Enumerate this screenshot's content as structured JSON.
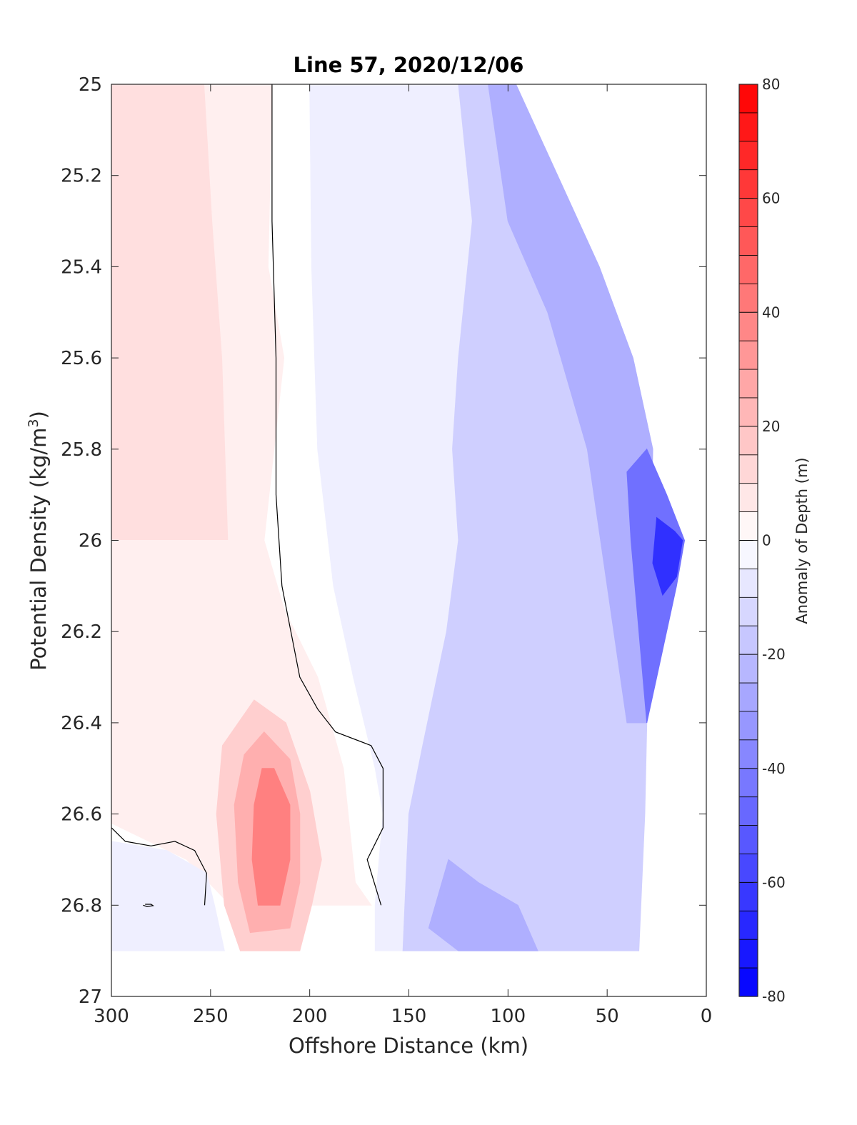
{
  "chart_data": {
    "type": "contour",
    "title": "Line 57, 2020/12/06",
    "xlabel": "Offshore Distance (km)",
    "ylabel": "Potential Density (kg/m",
    "ylabel_superscript": "3",
    "ylabel_suffix": ")",
    "xlim": [
      300,
      0
    ],
    "ylim": [
      25,
      27
    ],
    "x_reversed": true,
    "y_reversed": true,
    "xticks": [
      300,
      250,
      200,
      150,
      100,
      50,
      0
    ],
    "xtick_labels": [
      "300",
      "250",
      "200",
      "150",
      "100",
      "50",
      "0"
    ],
    "yticks": [
      25,
      25.2,
      25.4,
      25.6,
      25.8,
      26,
      26.2,
      26.4,
      26.6,
      26.8,
      27
    ],
    "ytick_labels": [
      "25",
      "25.2",
      "25.4",
      "25.6",
      "25.8",
      "26",
      "26.2",
      "26.4",
      "26.6",
      "26.8",
      "27"
    ],
    "grid": false,
    "colorbar": {
      "label": "Anomaly of Depth (m)",
      "range": [
        -80,
        80
      ],
      "level_step": 5,
      "ticks": [
        80,
        60,
        40,
        20,
        0,
        -20,
        -40,
        -60,
        -80
      ],
      "tick_labels": [
        "80",
        "60",
        "40",
        "20",
        "0",
        "-20",
        "-40",
        "-60",
        "-80"
      ],
      "colormap": "blue-white-red",
      "colors": {
        "negative_end": "#0000ff",
        "zero": "#ffffff",
        "positive_end": "#ff0000"
      }
    },
    "zero_contour_color": "#000000",
    "regions": [
      {
        "name": "offshore weak positive band",
        "level": 10,
        "points": [
          [
            300,
            25
          ],
          [
            253,
            25
          ],
          [
            249,
            25.3
          ],
          [
            244,
            25.6
          ],
          [
            241,
            26.0
          ],
          [
            234,
            26.2
          ],
          [
            228,
            26.4
          ],
          [
            238,
            26.6
          ],
          [
            300,
            26.62
          ]
        ]
      },
      {
        "name": "inner positive band",
        "level": 5,
        "points": [
          [
            253,
            25
          ],
          [
            219,
            25
          ],
          [
            221,
            25.4
          ],
          [
            213,
            25.6
          ],
          [
            223,
            26.0
          ],
          [
            213,
            26.15
          ],
          [
            196,
            26.3
          ],
          [
            183,
            26.5
          ],
          [
            177,
            26.75
          ],
          [
            169,
            26.8
          ],
          [
            200,
            26.8
          ],
          [
            240,
            26.8
          ],
          [
            262,
            26.7
          ],
          [
            300,
            26.62
          ],
          [
            300,
            26.0
          ],
          [
            241,
            26.0
          ],
          [
            244,
            25.6
          ],
          [
            249,
            25.3
          ]
        ]
      },
      {
        "name": "subsurface positive core outer",
        "level": 15,
        "points": [
          [
            228,
            26.35
          ],
          [
            212,
            26.4
          ],
          [
            200,
            26.55
          ],
          [
            194,
            26.7
          ],
          [
            199,
            26.8
          ],
          [
            205,
            26.9
          ],
          [
            235,
            26.9
          ],
          [
            243,
            26.8
          ],
          [
            247,
            26.6
          ],
          [
            244,
            26.45
          ]
        ]
      },
      {
        "name": "subsurface positive core middle",
        "level": 25,
        "points": [
          [
            223,
            26.42
          ],
          [
            210,
            26.48
          ],
          [
            205,
            26.6
          ],
          [
            205,
            26.75
          ],
          [
            210,
            26.85
          ],
          [
            230,
            26.86
          ],
          [
            236,
            26.75
          ],
          [
            238,
            26.58
          ],
          [
            233,
            26.47
          ]
        ]
      },
      {
        "name": "subsurface positive core inner",
        "level": 40,
        "points": [
          [
            218,
            26.5
          ],
          [
            210,
            26.58
          ],
          [
            210,
            26.7
          ],
          [
            215,
            26.8
          ],
          [
            226,
            26.8
          ],
          [
            229,
            26.7
          ],
          [
            228,
            26.58
          ],
          [
            224,
            26.5
          ]
        ]
      },
      {
        "name": "deep offshore weak negative",
        "level": -5,
        "points": [
          [
            300,
            26.66
          ],
          [
            272,
            26.68
          ],
          [
            252,
            26.73
          ],
          [
            248,
            26.8
          ],
          [
            243,
            26.9
          ],
          [
            300,
            26.9
          ]
        ]
      },
      {
        "name": "near-zero negative band",
        "level": -5,
        "points": [
          [
            200,
            25
          ],
          [
            125,
            25
          ],
          [
            118,
            25.3
          ],
          [
            125,
            25.6
          ],
          [
            128,
            25.8
          ],
          [
            125,
            26.0
          ],
          [
            131,
            26.2
          ],
          [
            143,
            26.45
          ],
          [
            150,
            26.6
          ],
          [
            152,
            26.8
          ],
          [
            153,
            26.9
          ],
          [
            167,
            26.9
          ],
          [
            167,
            26.8
          ],
          [
            163,
            26.6
          ],
          [
            167,
            26.5
          ],
          [
            178,
            26.3
          ],
          [
            188,
            26.1
          ],
          [
            196,
            25.8
          ],
          [
            199,
            25.4
          ]
        ]
      },
      {
        "name": "moderate negative band",
        "level": -15,
        "points": [
          [
            125,
            25
          ],
          [
            96,
            25
          ],
          [
            75,
            25.2
          ],
          [
            54,
            25.4
          ],
          [
            37,
            25.6
          ],
          [
            27,
            25.8
          ],
          [
            28,
            26.0
          ],
          [
            31,
            26.2
          ],
          [
            30,
            26.4
          ],
          [
            31,
            26.6
          ],
          [
            34,
            26.9
          ],
          [
            153,
            26.9
          ],
          [
            152,
            26.8
          ],
          [
            150,
            26.6
          ],
          [
            143,
            26.45
          ],
          [
            131,
            26.2
          ],
          [
            125,
            26.0
          ],
          [
            128,
            25.8
          ],
          [
            125,
            25.6
          ],
          [
            118,
            25.3
          ]
        ]
      },
      {
        "name": "stronger negative band",
        "level": -25,
        "points": [
          [
            110,
            25
          ],
          [
            96,
            25
          ],
          [
            75,
            25.2
          ],
          [
            54,
            25.4
          ],
          [
            37,
            25.6
          ],
          [
            27,
            25.8
          ],
          [
            28,
            26.0
          ],
          [
            31,
            26.2
          ],
          [
            30,
            26.4
          ],
          [
            40,
            26.4
          ],
          [
            50,
            26.1
          ],
          [
            60,
            25.8
          ],
          [
            80,
            25.5
          ],
          [
            100,
            25.3
          ]
        ]
      },
      {
        "name": "deep negative patch",
        "level": -25,
        "points": [
          [
            130,
            26.7
          ],
          [
            115,
            26.75
          ],
          [
            95,
            26.8
          ],
          [
            85,
            26.9
          ],
          [
            125,
            26.9
          ],
          [
            140,
            26.85
          ]
        ]
      },
      {
        "name": "coastal strong negative",
        "level": -45,
        "points": [
          [
            40,
            25.85
          ],
          [
            30,
            25.8
          ],
          [
            20,
            25.9
          ],
          [
            11,
            26.0
          ],
          [
            15,
            26.1
          ],
          [
            25,
            26.3
          ],
          [
            30,
            26.4
          ],
          [
            34,
            26.2
          ],
          [
            38,
            26.0
          ]
        ]
      },
      {
        "name": "coastal strongest negative",
        "level": -65,
        "points": [
          [
            25,
            25.95
          ],
          [
            16,
            25.98
          ],
          [
            12,
            26.0
          ],
          [
            15,
            26.08
          ],
          [
            22,
            26.12
          ],
          [
            27,
            26.05
          ]
        ]
      }
    ],
    "zero_contours": [
      {
        "points": [
          [
            219,
            25
          ],
          [
            219,
            25.3
          ],
          [
            217,
            25.6
          ],
          [
            217,
            25.9
          ],
          [
            214,
            26.1
          ],
          [
            205,
            26.3
          ],
          [
            196,
            26.37
          ],
          [
            187,
            26.42
          ],
          [
            169,
            26.45
          ],
          [
            163,
            26.5
          ],
          [
            163,
            26.63
          ],
          [
            171,
            26.7
          ],
          [
            164,
            26.8
          ]
        ]
      },
      {
        "points": [
          [
            300,
            26.63
          ],
          [
            293,
            26.66
          ],
          [
            280,
            26.67
          ],
          [
            268,
            26.66
          ],
          [
            258,
            26.68
          ],
          [
            252,
            26.73
          ],
          [
            253,
            26.8
          ]
        ]
      },
      {
        "points": [
          [
            283,
            26.798
          ],
          [
            280,
            26.798
          ],
          [
            279,
            26.801
          ],
          [
            282,
            26.803
          ],
          [
            284,
            26.8
          ]
        ]
      }
    ]
  }
}
